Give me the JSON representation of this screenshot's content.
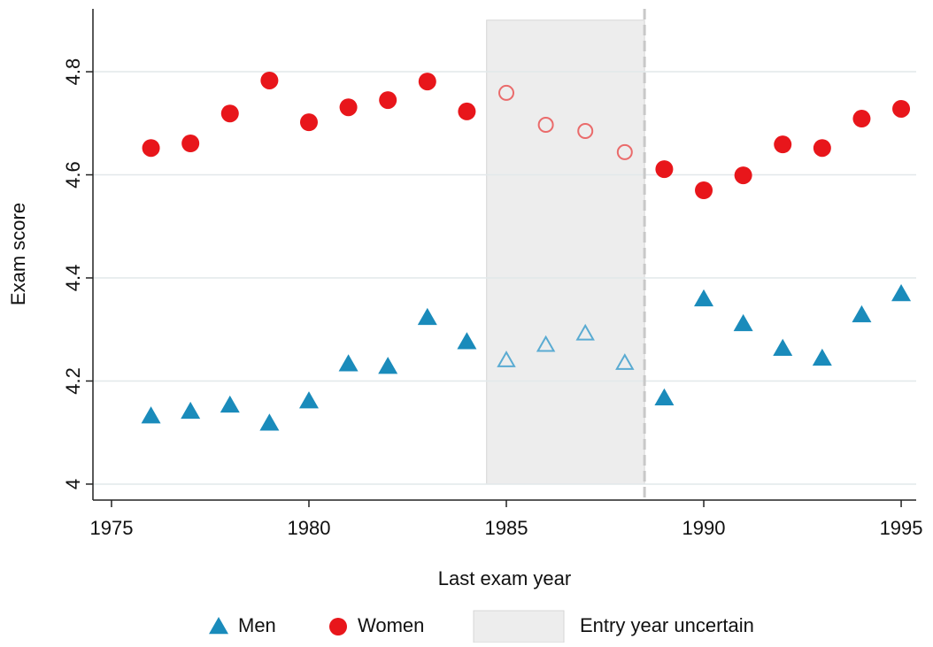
{
  "chart_data": {
    "type": "scatter",
    "x_label": "Last exam year",
    "y_label": "Exam score",
    "x": [
      1976,
      1977,
      1978,
      1979,
      1980,
      1981,
      1982,
      1983,
      1984,
      1985,
      1986,
      1987,
      1988,
      1989,
      1990,
      1991,
      1992,
      1993,
      1994,
      1995
    ],
    "series": [
      {
        "name": "Men",
        "marker": "triangle",
        "color": "#1a8bbb",
        "hollow_color": "#5aabd2",
        "values": [
          4.132,
          4.141,
          4.153,
          4.118,
          4.161,
          4.233,
          4.228,
          4.323,
          4.276,
          4.24,
          4.27,
          4.292,
          4.235,
          4.167,
          4.359,
          4.311,
          4.263,
          4.244,
          4.328,
          4.369
        ]
      },
      {
        "name": "Women",
        "marker": "circle",
        "color": "#e8161b",
        "hollow_color": "#ea6b6b",
        "values": [
          4.652,
          4.661,
          4.719,
          4.783,
          4.702,
          4.731,
          4.745,
          4.781,
          4.723,
          4.759,
          4.697,
          4.685,
          4.644,
          4.611,
          4.57,
          4.599,
          4.659,
          4.652,
          4.709,
          4.728
        ]
      }
    ],
    "band": {
      "label": "Entry year uncertain",
      "x": [
        1984.5,
        1988.5
      ],
      "y": [
        4,
        4.9
      ],
      "color": "#ededed",
      "hollow_markers": true
    },
    "vline": 1988.5,
    "xlim": [
      1974.53,
      1995.38
    ],
    "ylim": [
      3.969,
      4.922
    ],
    "xticks": [
      1975,
      1980,
      1985,
      1990,
      1995
    ],
    "yticks": [
      4,
      4.2,
      4.4,
      4.6,
      4.8
    ],
    "grid": true,
    "legend": "bottom"
  }
}
